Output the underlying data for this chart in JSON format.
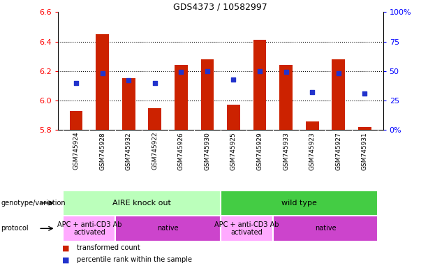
{
  "title": "GDS4373 / 10582997",
  "samples": [
    "GSM745924",
    "GSM745928",
    "GSM745932",
    "GSM745922",
    "GSM745926",
    "GSM745930",
    "GSM745925",
    "GSM745929",
    "GSM745933",
    "GSM745923",
    "GSM745927",
    "GSM745931"
  ],
  "red_values": [
    5.93,
    6.45,
    6.15,
    5.95,
    6.24,
    6.28,
    5.97,
    6.41,
    6.24,
    5.86,
    6.28,
    5.82
  ],
  "blue_pct": [
    40,
    48,
    42,
    40,
    49,
    50,
    43,
    50,
    49,
    32,
    48,
    31
  ],
  "y_min": 5.8,
  "y_max": 6.6,
  "y_ticks_red": [
    5.8,
    6.0,
    6.2,
    6.4,
    6.6
  ],
  "y_ticks_blue": [
    0,
    25,
    50,
    75,
    100
  ],
  "y_ticks_blue_labels": [
    "0%",
    "25",
    "50",
    "75",
    "100%"
  ],
  "bar_color": "#cc2200",
  "dot_color": "#2233cc",
  "bar_bottom": 5.8,
  "genotype_groups": [
    {
      "label": "AIRE knock out",
      "start": 0,
      "end": 6,
      "color": "#bbffbb"
    },
    {
      "label": "wild type",
      "start": 6,
      "end": 12,
      "color": "#44cc44"
    }
  ],
  "protocol_groups": [
    {
      "label": "APC + anti-CD3 Ab\nactivated",
      "start": 0,
      "end": 2,
      "color": "#ffaaff"
    },
    {
      "label": "native",
      "start": 2,
      "end": 6,
      "color": "#cc44cc"
    },
    {
      "label": "APC + anti-CD3 Ab\nactivated",
      "start": 6,
      "end": 8,
      "color": "#ffaaff"
    },
    {
      "label": "native",
      "start": 8,
      "end": 12,
      "color": "#cc44cc"
    }
  ],
  "tick_bg_color": "#bbbbbb",
  "plot_bg_color": "#ffffff",
  "genotype_label": "genotype/variation",
  "protocol_label": "protocol",
  "legend_red": "transformed count",
  "legend_blue": "percentile rank within the sample"
}
